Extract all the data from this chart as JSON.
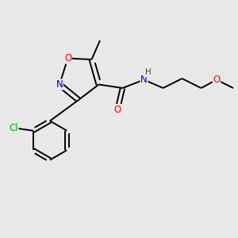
{
  "background_color": "#e8e8e8",
  "bond_color": "#000000",
  "atom_colors": {
    "N": "#0000cd",
    "O": "#ff0000",
    "Cl": "#00aa00",
    "C": "#000000",
    "H": "#404040"
  },
  "figsize": [
    3.0,
    3.0
  ],
  "dpi": 100,
  "lw": 1.4,
  "fontsize": 8.5
}
